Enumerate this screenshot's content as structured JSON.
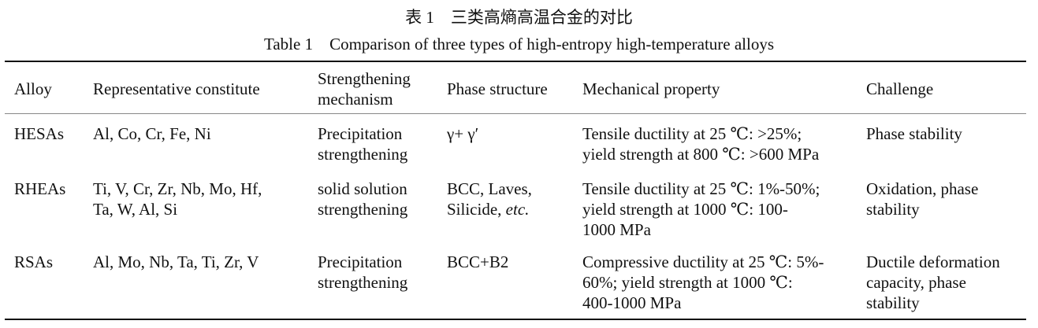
{
  "caption": {
    "cn": "表 1　三类高熵高温合金的对比",
    "en": "Table 1　Comparison of three types of high-entropy high-temperature alloys"
  },
  "table": {
    "headers": [
      [
        "Alloy"
      ],
      [
        "Representative constitute"
      ],
      [
        "Strengthening",
        "mechanism"
      ],
      [
        "Phase structure"
      ],
      [
        "Mechanical property"
      ],
      [
        "Challenge"
      ]
    ],
    "rows": [
      [
        [
          "HESAs"
        ],
        [
          "Al, Co, Cr, Fe, Ni"
        ],
        [
          "Precipitation",
          "strengthening"
        ],
        [
          "γ+ γ′"
        ],
        [
          "Tensile ductility at 25 ℃: >25%;",
          "yield strength at 800 ℃: >600 MPa"
        ],
        [
          "Phase stability"
        ]
      ],
      [
        [
          "RHEAs"
        ],
        [
          "Ti, V, Cr, Zr, Nb, Mo, Hf,",
          "Ta, W, Al, Si"
        ],
        [
          "solid solution",
          "strengthening"
        ],
        [
          "BCC, Laves,",
          "Silicide, |etc.|"
        ],
        [
          "Tensile ductility at 25 ℃: 1%-50%;",
          "yield strength at 1000 ℃: 100-",
          "1000 MPa"
        ],
        [
          "Oxidation, phase",
          "stability"
        ]
      ],
      [
        [
          "RSAs"
        ],
        [
          "Al, Mo, Nb, Ta, Ti, Zr, V"
        ],
        [
          "Precipitation",
          "strengthening"
        ],
        [
          "BCC+B2"
        ],
        [
          "Compressive ductility at 25 ℃: 5%-",
          "60%; yield strength at 1000 ℃:",
          "400-1000 MPa"
        ],
        [
          "Ductile deformation",
          "capacity, phase",
          "stability"
        ]
      ]
    ]
  }
}
